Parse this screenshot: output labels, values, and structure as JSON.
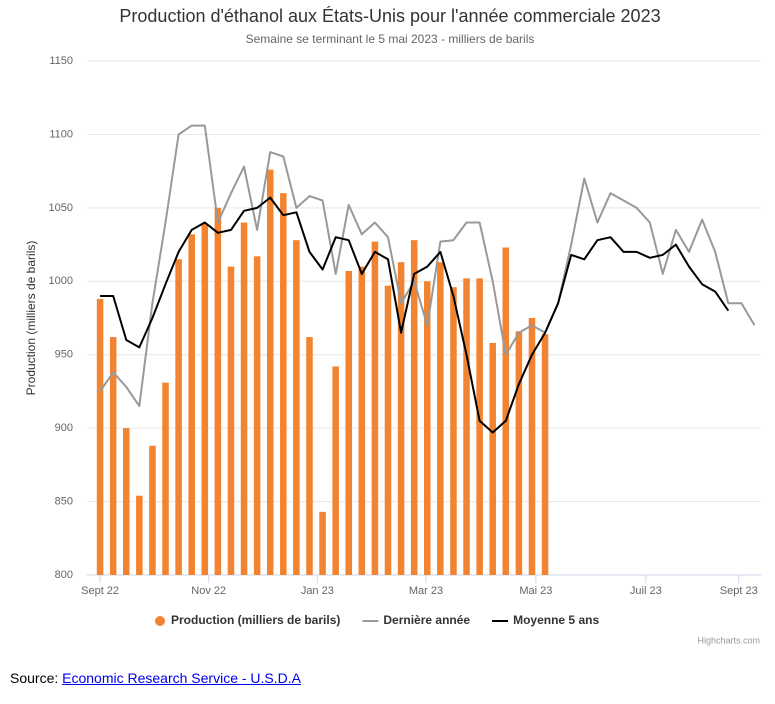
{
  "chart_data": {
    "type": "bar_line",
    "title": "Production d'éthanol aux États-Unis pour l'année commerciale 2023",
    "subtitle": "Semaine se terminant le 5 mai 2023 - milliers de barils",
    "y_label": "Production (milliers de barils)",
    "xlim": [
      -1,
      50.5
    ],
    "xticks": [
      {
        "value": 0,
        "label": "Sept 22"
      },
      {
        "value": 8.3,
        "label": "Nov 22"
      },
      {
        "value": 16.6,
        "label": "Jan 23"
      },
      {
        "value": 24.9,
        "label": "Mar 23"
      },
      {
        "value": 33.3,
        "label": "Mai 23"
      },
      {
        "value": 41.7,
        "label": "Juil 23"
      },
      {
        "value": 48.8,
        "label": "Sept 23"
      }
    ],
    "ylim": [
      800,
      1150
    ],
    "yticks": [
      800,
      850,
      900,
      950,
      1000,
      1050,
      1100,
      1150
    ],
    "grid": true,
    "series": [
      {
        "name": "Production (milliers de barils)",
        "kind": "bar",
        "color": "#f28431",
        "values": [
          988,
          962,
          900,
          854,
          888,
          931,
          1015,
          1032,
          1039,
          1050,
          1010,
          1040,
          1017,
          1076,
          1060,
          1028,
          962,
          843,
          942,
          1007,
          1010,
          1027,
          997,
          1013,
          1028,
          1000,
          1013,
          996,
          1002,
          1002,
          958,
          1023,
          966,
          975,
          964
        ]
      },
      {
        "name": "Dernière année",
        "kind": "line",
        "color": "#999999",
        "values": [
          925,
          938,
          928,
          915,
          985,
          1040,
          1100,
          1106,
          1106,
          1040,
          1060,
          1078,
          1035,
          1088,
          1085,
          1050,
          1058,
          1055,
          1005,
          1052,
          1032,
          1040,
          1030,
          985,
          1000,
          970,
          1027,
          1028,
          1040,
          1040,
          1000,
          950,
          965,
          970,
          965,
          985,
          1025,
          1070,
          1040,
          1060,
          1055,
          1050,
          1040,
          1005,
          1035,
          1020,
          1042,
          1020,
          985,
          985,
          970
        ]
      },
      {
        "name": "Moyenne 5 ans",
        "kind": "line",
        "color": "#000000",
        "values": [
          990,
          990,
          960,
          955,
          975,
          998,
          1020,
          1035,
          1040,
          1033,
          1035,
          1048,
          1050,
          1057,
          1045,
          1047,
          1020,
          1008,
          1030,
          1028,
          1005,
          1020,
          1015,
          965,
          1005,
          1010,
          1020,
          990,
          950,
          905,
          897,
          905,
          930,
          950,
          965,
          985,
          1018,
          1015,
          1028,
          1030,
          1020,
          1020,
          1016,
          1018,
          1025,
          1010,
          998,
          993,
          980
        ]
      }
    ],
    "credits": "Highcharts.com",
    "source_prefix": "Source:",
    "source_link": "Economic Research Service - U.S.D.A"
  }
}
